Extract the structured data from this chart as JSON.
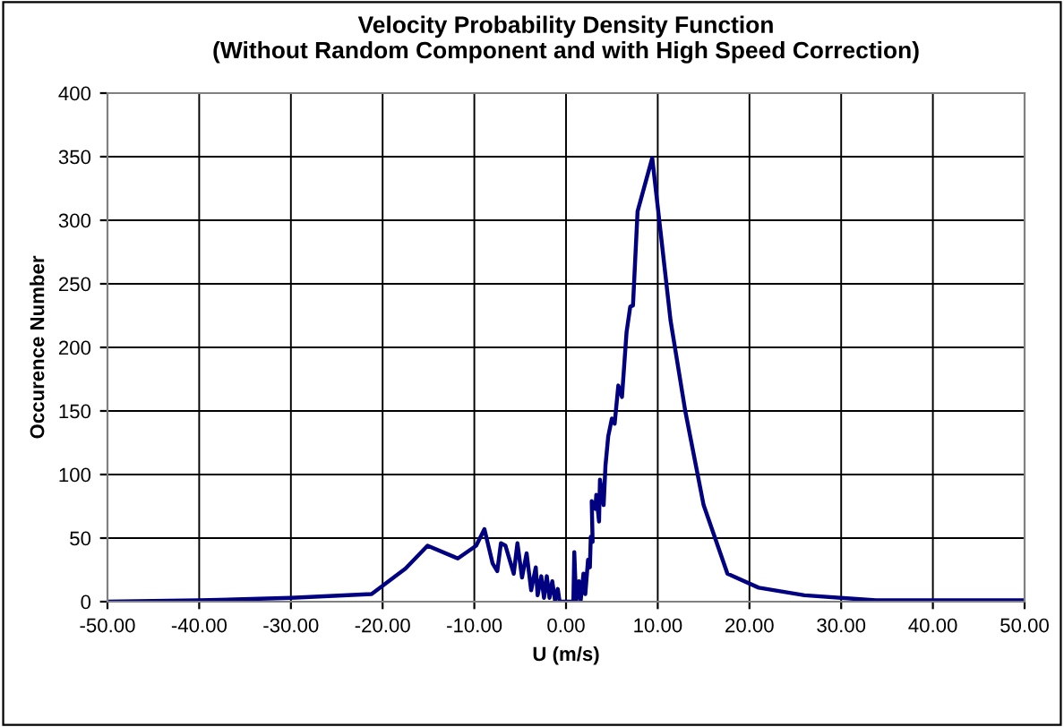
{
  "chart_data": {
    "type": "line",
    "title": "Velocity Probability Density Function\n(Without Random Component and with High Speed Correction)",
    "xlabel": "U (m/s)",
    "ylabel": "Occurence Number",
    "x": [
      -50,
      -40,
      -30,
      -21.2,
      -17.5,
      -15.1,
      -11.8,
      -9.8,
      -8.9,
      -8.0,
      -7.5,
      -7.1,
      -6.6,
      -5.7,
      -5.3,
      -4.8,
      -4.3,
      -3.8,
      -3.3,
      -3.1,
      -2.7,
      -2.4,
      -2.1,
      -1.8,
      -1.5,
      -1.2,
      -0.9,
      -0.7,
      0.8,
      0.9,
      1.1,
      1.4,
      1.6,
      1.9,
      2.1,
      2.4,
      2.6,
      2.7,
      2.9,
      2.8,
      3.2,
      3.3,
      3.6,
      3.7,
      4.1,
      4.3,
      4.6,
      5.0,
      5.3,
      5.7,
      6.1,
      6.6,
      7.0,
      7.3,
      7.8,
      9.4,
      11.4,
      13.0,
      15.0,
      17.6,
      21.0,
      26.0,
      33.8,
      50
    ],
    "series": [
      {
        "color": "#000080",
        "values": [
          0,
          1,
          3,
          6,
          26,
          44,
          34,
          44,
          57,
          30,
          24,
          46,
          44,
          22,
          46,
          19,
          38,
          9,
          27,
          5,
          20,
          3,
          20,
          3,
          16,
          1,
          10,
          0,
          0,
          39,
          0,
          16,
          1,
          22,
          6,
          33,
          27,
          51,
          47,
          79,
          73,
          84,
          63,
          96,
          76,
          107,
          130,
          144,
          140,
          170,
          161,
          212,
          232,
          233,
          307,
          349,
          221,
          150,
          76,
          22,
          11,
          5,
          1,
          1
        ]
      }
    ],
    "xlim": [
      -50,
      50
    ],
    "ylim": [
      0,
      400
    ],
    "xticks": [
      {
        "value": -50,
        "label": "-50.00"
      },
      {
        "value": -40,
        "label": "-40.00"
      },
      {
        "value": -30,
        "label": "-30.00"
      },
      {
        "value": -20,
        "label": "-20.00"
      },
      {
        "value": -10,
        "label": "-10.00"
      },
      {
        "value": 0,
        "label": "0.00"
      },
      {
        "value": 10,
        "label": "10.00"
      },
      {
        "value": 20,
        "label": "20.00"
      },
      {
        "value": 30,
        "label": "30.00"
      },
      {
        "value": 40,
        "label": "40.00"
      },
      {
        "value": 50,
        "label": "50.00"
      }
    ],
    "yticks": [
      0,
      50,
      100,
      150,
      200,
      250,
      300,
      350,
      400
    ],
    "grid": true,
    "legend": false,
    "marker": "none",
    "line_style": "solid"
  }
}
